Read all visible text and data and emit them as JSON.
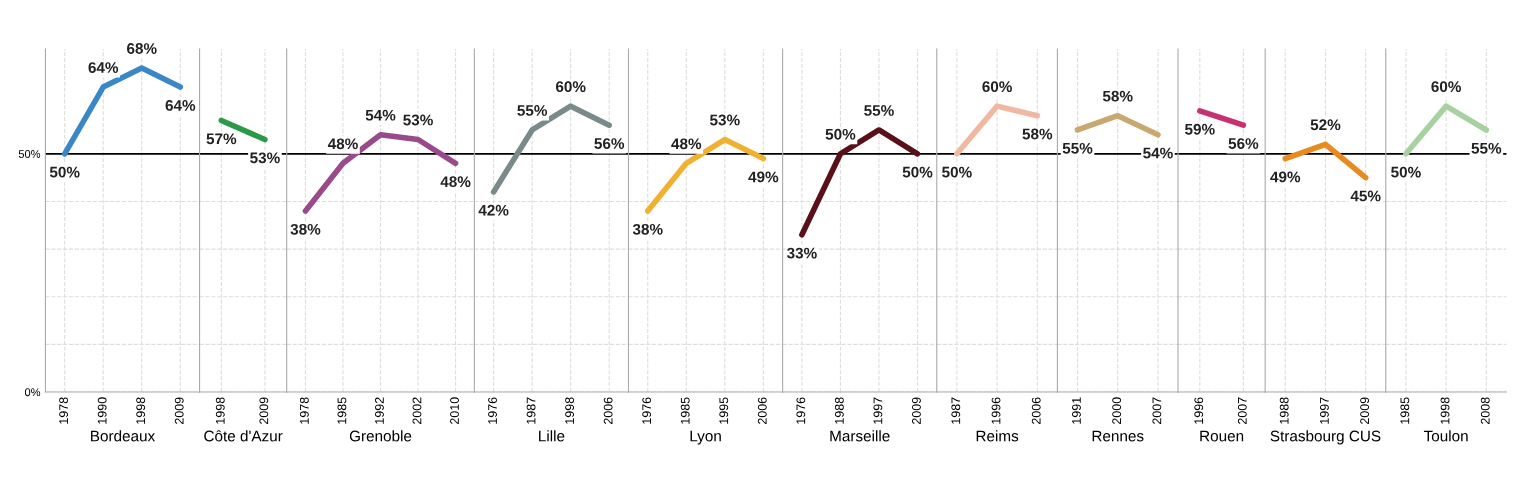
{
  "chart_data": [
    {
      "type": "line",
      "xlabel": "Bordeaux",
      "categories": [
        "1978",
        "1990",
        "1998",
        "2009"
      ],
      "values": [
        50,
        64,
        68,
        64
      ],
      "value_labels": [
        "50%",
        "64%",
        "68%",
        "64%"
      ],
      "color": "#3a87c8",
      "ylim": [
        0,
        72
      ],
      "yticks": [
        {
          "value": 0,
          "label": "0%"
        },
        {
          "value": 10,
          "label": null
        },
        {
          "value": 20,
          "label": null
        },
        {
          "value": 30,
          "label": null
        },
        {
          "value": 40,
          "label": null
        },
        {
          "value": 50,
          "label": "50%"
        }
      ],
      "ref_lines": [
        {
          "axis": "y",
          "value": 50,
          "color": "#000000"
        }
      ],
      "grid": true
    },
    {
      "type": "line",
      "xlabel": "Côte d'Azur",
      "categories": [
        "1998",
        "2009"
      ],
      "values": [
        57,
        53
      ],
      "value_labels": [
        "57%",
        "53%"
      ],
      "color": "#2a9a4a",
      "ylim": [
        0,
        72
      ],
      "yticks": [
        0,
        10,
        20,
        30,
        40,
        50
      ],
      "ref_lines": [
        {
          "axis": "y",
          "value": 50,
          "color": "#000000"
        }
      ],
      "grid": true,
      "tick_labels": "x"
    },
    {
      "type": "line",
      "xlabel": "Grenoble",
      "categories": [
        "1978",
        "1985",
        "1992",
        "2002",
        "2010"
      ],
      "values": [
        38,
        48,
        54,
        53,
        48
      ],
      "value_labels": [
        "38%",
        "48%",
        "54%",
        "53%",
        "48%"
      ],
      "color": "#9a4a8a",
      "ylim": [
        0,
        72
      ],
      "yticks": [
        0,
        10,
        20,
        30,
        40,
        50
      ],
      "ref_lines": [
        {
          "axis": "y",
          "value": 50,
          "color": "#000000"
        }
      ],
      "grid": true,
      "tick_labels": "x"
    },
    {
      "type": "line",
      "xlabel": "Lille",
      "categories": [
        "1976",
        "1987",
        "1998",
        "2006"
      ],
      "values": [
        42,
        55,
        60,
        56
      ],
      "value_labels": [
        "42%",
        "55%",
        "60%",
        "56%"
      ],
      "color": "#7a8a8a",
      "ylim": [
        0,
        72
      ],
      "yticks": [
        0,
        10,
        20,
        30,
        40,
        50
      ],
      "ref_lines": [
        {
          "axis": "y",
          "value": 50,
          "color": "#000000"
        }
      ],
      "grid": true,
      "tick_labels": "x"
    },
    {
      "type": "line",
      "xlabel": "Lyon",
      "categories": [
        "1976",
        "1985",
        "1995",
        "2006"
      ],
      "values": [
        38,
        48,
        53,
        49
      ],
      "value_labels": [
        "38%",
        "48%",
        "53%",
        "49%"
      ],
      "color": "#f0b030",
      "ylim": [
        0,
        72
      ],
      "yticks": [
        0,
        10,
        20,
        30,
        40,
        50
      ],
      "ref_lines": [
        {
          "axis": "y",
          "value": 50,
          "color": "#000000"
        }
      ],
      "grid": true,
      "tick_labels": "x"
    },
    {
      "type": "line",
      "xlabel": "Marseille",
      "categories": [
        "1976",
        "1988",
        "1997",
        "2009"
      ],
      "values": [
        33,
        50,
        55,
        50
      ],
      "value_labels": [
        "33%",
        "50%",
        "55%",
        "50%"
      ],
      "color": "#5a1018",
      "ylim": [
        0,
        72
      ],
      "yticks": [
        0,
        10,
        20,
        30,
        40,
        50
      ],
      "ref_lines": [
        {
          "axis": "y",
          "value": 50,
          "color": "#000000"
        }
      ],
      "grid": true,
      "tick_labels": "x"
    },
    {
      "type": "line",
      "xlabel": "Reims",
      "categories": [
        "1987",
        "1996",
        "2006"
      ],
      "values": [
        50,
        60,
        58
      ],
      "value_labels": [
        "50%",
        "60%",
        "58%"
      ],
      "color": "#f0b8a0",
      "ylim": [
        0,
        72
      ],
      "yticks": [
        0,
        10,
        20,
        30,
        40,
        50
      ],
      "ref_lines": [
        {
          "axis": "y",
          "value": 50,
          "color": "#000000"
        }
      ],
      "grid": true,
      "tick_labels": "x"
    },
    {
      "type": "line",
      "xlabel": "Rennes",
      "categories": [
        "1991",
        "2000",
        "2007"
      ],
      "values": [
        55,
        58,
        54
      ],
      "value_labels": [
        "55%",
        "58%",
        "54%"
      ],
      "color": "#c8a870",
      "ylim": [
        0,
        72
      ],
      "yticks": [
        0,
        10,
        20,
        30,
        40,
        50
      ],
      "ref_lines": [
        {
          "axis": "y",
          "value": 50,
          "color": "#000000"
        }
      ],
      "grid": true,
      "tick_labels": "x"
    },
    {
      "type": "line",
      "xlabel": "Rouen",
      "categories": [
        "1996",
        "2007"
      ],
      "values": [
        59,
        56
      ],
      "value_labels": [
        "59%",
        "56%"
      ],
      "color": "#c83070",
      "ylim": [
        0,
        72
      ],
      "yticks": [
        0,
        10,
        20,
        30,
        40,
        50
      ],
      "ref_lines": [
        {
          "axis": "y",
          "value": 50,
          "color": "#000000"
        }
      ],
      "grid": true,
      "tick_labels": "x"
    },
    {
      "type": "line",
      "xlabel": "Strasbourg CUS",
      "categories": [
        "1988",
        "1997",
        "2009"
      ],
      "values": [
        49,
        52,
        45
      ],
      "value_labels": [
        "49%",
        "52%",
        "45%"
      ],
      "color": "#e88a20",
      "ylim": [
        0,
        72
      ],
      "yticks": [
        0,
        10,
        20,
        30,
        40,
        50
      ],
      "ref_lines": [
        {
          "axis": "y",
          "value": 50,
          "color": "#000000"
        }
      ],
      "grid": true,
      "tick_labels": "x"
    },
    {
      "type": "line",
      "xlabel": "Toulon",
      "categories": [
        "1985",
        "1998",
        "2008"
      ],
      "values": [
        50,
        60,
        55
      ],
      "value_labels": [
        "50%",
        "60%",
        "55%"
      ],
      "color": "#a8d0a0",
      "ylim": [
        0,
        72
      ],
      "yticks": [
        0,
        10,
        20,
        30,
        40,
        50
      ],
      "ref_lines": [
        {
          "axis": "y",
          "value": 50,
          "color": "#000000"
        }
      ],
      "grid": true,
      "tick_labels": "x"
    }
  ]
}
